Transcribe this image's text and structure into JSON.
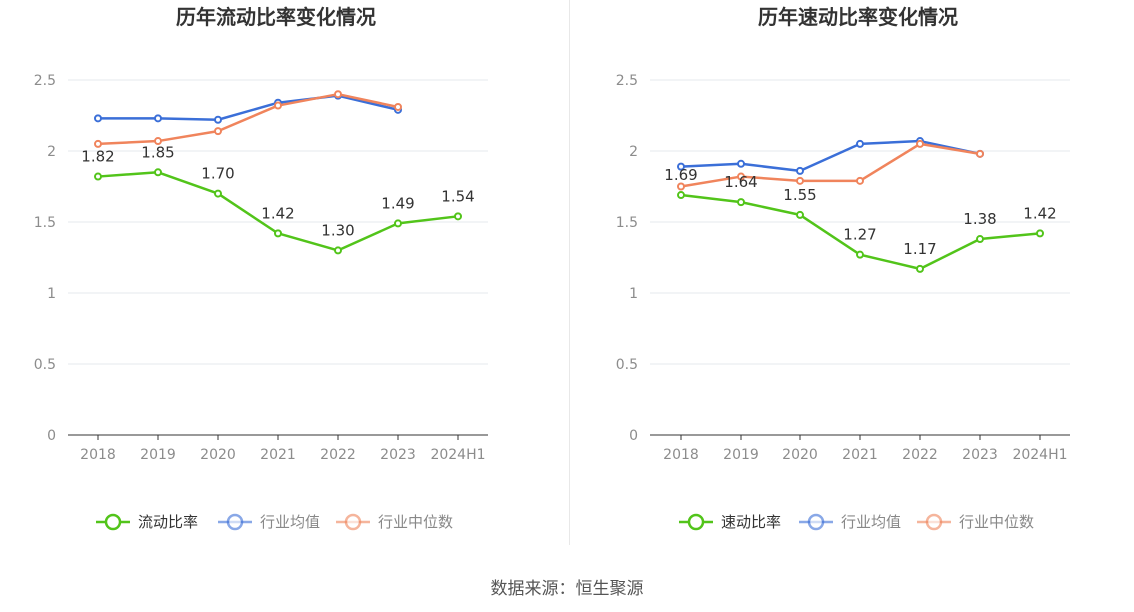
{
  "source_label": "数据来源：恒生聚源",
  "colors": {
    "green": "#52c41a",
    "blue": "#3b6fd8",
    "orange": "#f0845c",
    "axis": "#333333",
    "grid": "#e6e8ee",
    "tick": "#8c8c8c"
  },
  "chart_data": [
    {
      "type": "line",
      "title": "历年流动比率变化情况",
      "categories": [
        "2018",
        "2019",
        "2020",
        "2021",
        "2022",
        "2023",
        "2024H1"
      ],
      "ylim": [
        0,
        2.5
      ],
      "yticks": [
        "0",
        "0.5",
        "1",
        "1.5",
        "2",
        "2.5"
      ],
      "grid": true,
      "legend_position": "bottom",
      "series": [
        {
          "name": "流动比率",
          "color": "#52c41a",
          "labeled": true,
          "values": [
            1.82,
            1.85,
            1.7,
            1.42,
            1.3,
            1.49,
            1.54
          ],
          "labels": [
            "1.82",
            "1.85",
            "1.70",
            "1.42",
            "1.30",
            "1.49",
            "1.54"
          ]
        },
        {
          "name": "行业均值",
          "color": "#3b6fd8",
          "labeled": false,
          "values": [
            2.23,
            2.23,
            2.22,
            2.34,
            2.39,
            2.29,
            null
          ]
        },
        {
          "name": "行业中位数",
          "color": "#f0845c",
          "labeled": false,
          "values": [
            2.05,
            2.07,
            2.14,
            2.32,
            2.4,
            2.31,
            null
          ]
        }
      ]
    },
    {
      "type": "line",
      "title": "历年速动比率变化情况",
      "categories": [
        "2018",
        "2019",
        "2020",
        "2021",
        "2022",
        "2023",
        "2024H1"
      ],
      "ylim": [
        0,
        2.5
      ],
      "yticks": [
        "0",
        "0.5",
        "1",
        "1.5",
        "2",
        "2.5"
      ],
      "grid": true,
      "legend_position": "bottom",
      "series": [
        {
          "name": "速动比率",
          "color": "#52c41a",
          "labeled": true,
          "values": [
            1.69,
            1.64,
            1.55,
            1.27,
            1.17,
            1.38,
            1.42
          ],
          "labels": [
            "1.69",
            "1.64",
            "1.55",
            "1.27",
            "1.17",
            "1.38",
            "1.42"
          ]
        },
        {
          "name": "行业均值",
          "color": "#3b6fd8",
          "labeled": false,
          "values": [
            1.89,
            1.91,
            1.86,
            2.05,
            2.07,
            1.98,
            null
          ]
        },
        {
          "name": "行业中位数",
          "color": "#f0845c",
          "labeled": false,
          "values": [
            1.75,
            1.82,
            1.79,
            1.79,
            2.05,
            1.98,
            null
          ]
        }
      ]
    }
  ]
}
